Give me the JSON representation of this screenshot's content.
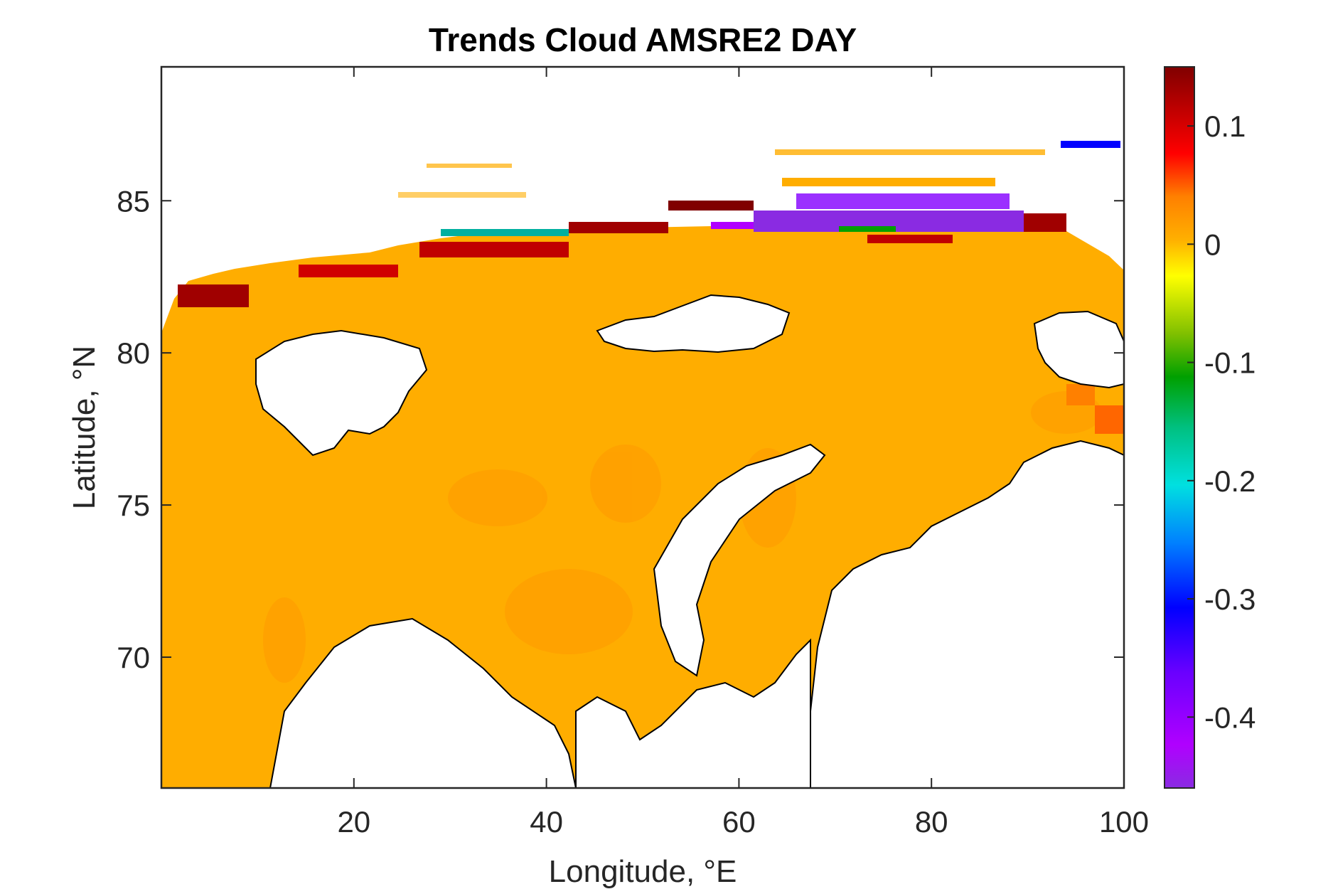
{
  "title": "Trends Cloud AMSRE2 DAY",
  "xlabel": "Longitude, °E",
  "ylabel": "Latitude, °N",
  "chart_data": {
    "type": "heatmap",
    "title": "Trends Cloud AMSRE2 DAY",
    "xlabel": "Longitude, °E",
    "ylabel": "Latitude, °N",
    "xlim": [
      0,
      100
    ],
    "ylim": [
      65.7,
      89.4
    ],
    "xticks": [
      20,
      40,
      60,
      80,
      100
    ],
    "xtick_labels": [
      "20",
      "40",
      "60",
      "80",
      "100"
    ],
    "yticks": [
      70,
      75,
      80,
      85
    ],
    "ytick_labels": [
      "70",
      "75",
      "80",
      "85"
    ],
    "colorbar": {
      "range": [
        -0.46,
        0.15
      ],
      "ticks": [
        0.1,
        0,
        -0.1,
        -0.2,
        -0.3,
        -0.4
      ],
      "tick_labels": [
        "0.1",
        "0",
        "-0.1",
        "-0.2",
        "-0.3",
        "-0.4"
      ],
      "colormap": [
        "#8a2be2",
        "#b000ff",
        "#6a00ff",
        "#0000ff",
        "#0080ff",
        "#00e0e0",
        "#00c080",
        "#00a000",
        "#80c000",
        "#ffff00",
        "#ffb000",
        "#ff8000",
        "#ff0000",
        "#c00000",
        "#800000"
      ]
    },
    "dominant_value": 0.01,
    "dominant_color": "#ffad00",
    "land_color": "#ffffff",
    "coastline_color": "#000000"
  }
}
